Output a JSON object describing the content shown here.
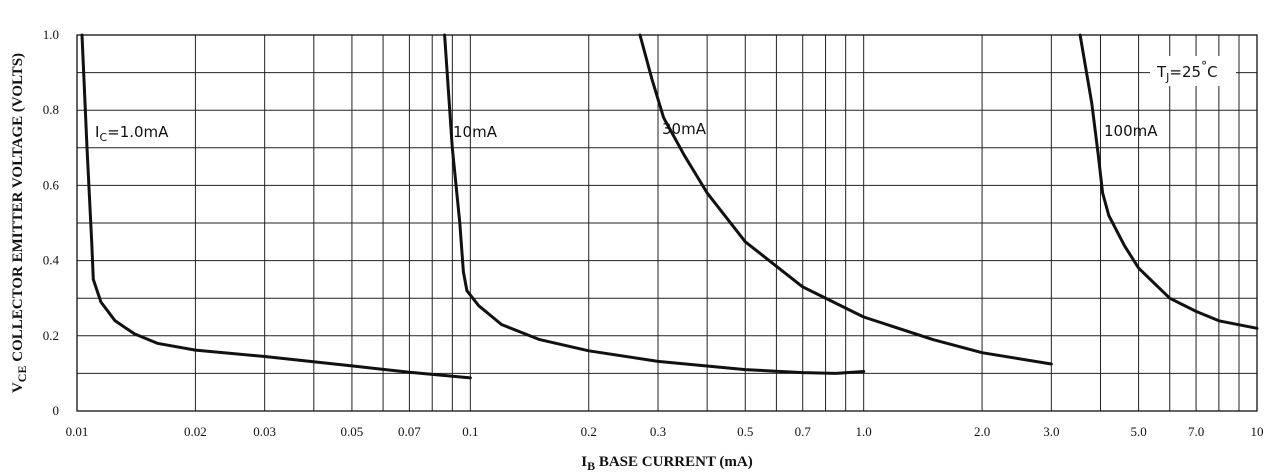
{
  "chart_data": {
    "type": "line",
    "x_scale": "log",
    "xlim": [
      0.01,
      10
    ],
    "ylim": [
      0,
      1.0
    ],
    "grid": true,
    "xlabel_main": "I",
    "xlabel_sub": "B",
    "xlabel_rest": " BASE CURRENT (mA)",
    "ylabel_main": "V",
    "ylabel_sub": "CE",
    "ylabel_rest": " COLLECTOR EMITTER VOLTAGE (VOLTS)",
    "x_ticks": [
      {
        "value": 0.01,
        "label": "0.01"
      },
      {
        "value": 0.02,
        "label": "0.02"
      },
      {
        "value": 0.03,
        "label": "0.03"
      },
      {
        "value": 0.05,
        "label": "0.05"
      },
      {
        "value": 0.07,
        "label": "0.07"
      },
      {
        "value": 0.1,
        "label": "0.1"
      },
      {
        "value": 0.2,
        "label": "0.2"
      },
      {
        "value": 0.3,
        "label": "0.3"
      },
      {
        "value": 0.5,
        "label": "0.5"
      },
      {
        "value": 0.7,
        "label": "0.7"
      },
      {
        "value": 1.0,
        "label": "1.0"
      },
      {
        "value": 2.0,
        "label": "2.0"
      },
      {
        "value": 3.0,
        "label": "3.0"
      },
      {
        "value": 5.0,
        "label": "5.0"
      },
      {
        "value": 7.0,
        "label": "7.0"
      },
      {
        "value": 10,
        "label": "10"
      }
    ],
    "y_ticks": [
      {
        "value": 0,
        "label": "0"
      },
      {
        "value": 0.2,
        "label": "0.2"
      },
      {
        "value": 0.4,
        "label": "0.4"
      },
      {
        "value": 0.6,
        "label": "0.6"
      },
      {
        "value": 0.8,
        "label": "0.8"
      },
      {
        "value": 1.0,
        "label": "1.0"
      }
    ],
    "annotation": {
      "main": "T",
      "sub": "J",
      "rest": "=25",
      "deg": "°",
      "unit": "C"
    },
    "series": [
      {
        "name": "I_C=1.0mA",
        "label_main": "I",
        "label_sub": "C",
        "label_rest": "=1.0mA",
        "points": [
          [
            0.0103,
            1.0
          ],
          [
            0.0106,
            0.7
          ],
          [
            0.0109,
            0.45
          ],
          [
            0.011,
            0.35
          ],
          [
            0.0115,
            0.29
          ],
          [
            0.0125,
            0.24
          ],
          [
            0.014,
            0.205
          ],
          [
            0.016,
            0.18
          ],
          [
            0.02,
            0.162
          ],
          [
            0.03,
            0.145
          ],
          [
            0.05,
            0.12
          ],
          [
            0.07,
            0.103
          ],
          [
            0.1,
            0.088
          ]
        ]
      },
      {
        "name": "10mA",
        "label_main": "10mA",
        "points": [
          [
            0.086,
            1.0
          ],
          [
            0.09,
            0.7
          ],
          [
            0.094,
            0.5
          ],
          [
            0.096,
            0.37
          ],
          [
            0.098,
            0.32
          ],
          [
            0.105,
            0.28
          ],
          [
            0.12,
            0.23
          ],
          [
            0.15,
            0.19
          ],
          [
            0.2,
            0.16
          ],
          [
            0.3,
            0.132
          ],
          [
            0.5,
            0.11
          ],
          [
            0.7,
            0.102
          ],
          [
            0.85,
            0.1
          ],
          [
            1.0,
            0.105
          ]
        ]
      },
      {
        "name": "30mA",
        "label_main": "30mA",
        "points": [
          [
            0.27,
            1.0
          ],
          [
            0.29,
            0.88
          ],
          [
            0.31,
            0.78
          ],
          [
            0.35,
            0.68
          ],
          [
            0.4,
            0.58
          ],
          [
            0.5,
            0.45
          ],
          [
            0.7,
            0.33
          ],
          [
            1.0,
            0.25
          ],
          [
            1.5,
            0.19
          ],
          [
            2.0,
            0.155
          ],
          [
            3.0,
            0.125
          ]
        ]
      },
      {
        "name": "100mA",
        "label_main": "100mA",
        "points": [
          [
            3.55,
            1.0
          ],
          [
            3.8,
            0.82
          ],
          [
            3.95,
            0.68
          ],
          [
            4.05,
            0.58
          ],
          [
            4.2,
            0.52
          ],
          [
            4.6,
            0.44
          ],
          [
            5.0,
            0.38
          ],
          [
            6.0,
            0.3
          ],
          [
            7.0,
            0.265
          ],
          [
            8.0,
            0.24
          ],
          [
            10.0,
            0.22
          ]
        ]
      }
    ]
  }
}
